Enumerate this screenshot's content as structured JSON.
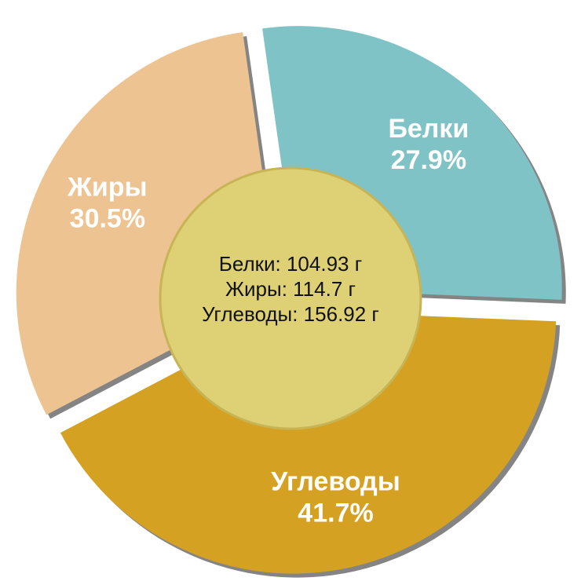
{
  "chart_data": {
    "type": "pie",
    "categories": [
      "Белки",
      "Углеводы",
      "Жиры"
    ],
    "values": [
      27.9,
      41.7,
      30.5
    ],
    "value_labels": [
      "27.9%",
      "41.7%",
      "30.5%"
    ],
    "colors": [
      "#80c3c7",
      "#d4a122",
      "#edc391"
    ],
    "center_text": [
      "Белки: 104.93 г",
      "Жиры: 114.7 г",
      "Углеводы: 156.92 г"
    ]
  }
}
